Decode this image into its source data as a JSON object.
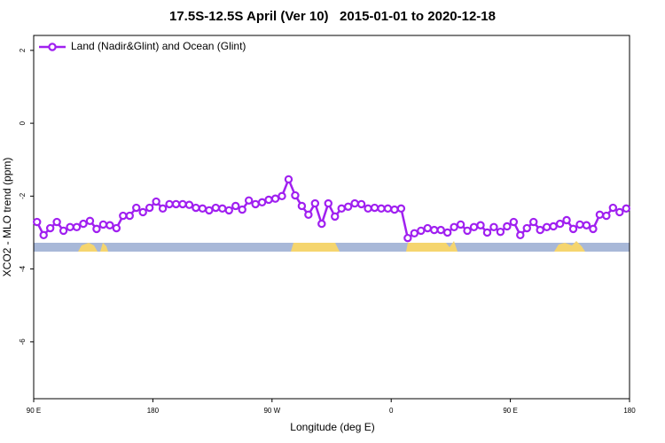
{
  "chart_data": {
    "type": "line",
    "title": "17.5S-12.5S April (Ver 10)   2015-01-01 to 2020-12-18",
    "xlabel": "Longitude (deg E)",
    "ylabel": "XCO2 - MLO trend (ppm)",
    "xlim": [
      90,
      540
    ],
    "ylim": [
      -7.56,
      2.41
    ],
    "xticks": [
      {
        "value": 90,
        "label": "90 E"
      },
      {
        "value": 180,
        "label": "180"
      },
      {
        "value": 270,
        "label": "90 W"
      },
      {
        "value": 360,
        "label": "0"
      },
      {
        "value": 450,
        "label": "90 E"
      },
      {
        "value": 540,
        "label": "180"
      }
    ],
    "yticks": [
      2,
      0,
      -2,
      -4,
      -6
    ],
    "legend": "top-left",
    "series": [
      {
        "name": "Land (Nadir&Glint) and Ocean (Glint)",
        "color": "#a020f0",
        "x": [
          92.5,
          97.5,
          102.5,
          107.5,
          112.5,
          117.5,
          122.5,
          127.5,
          132.5,
          137.5,
          142.5,
          147.5,
          152.5,
          157.5,
          162.5,
          167.5,
          172.5,
          177.5,
          182.5,
          187.5,
          192.5,
          197.5,
          202.5,
          207.5,
          212.5,
          217.5,
          222.5,
          227.5,
          232.5,
          237.5,
          242.5,
          247.5,
          252.5,
          257.5,
          262.5,
          267.5,
          272.5,
          277.5,
          282.5,
          287.5,
          292.5,
          297.5,
          302.5,
          307.5,
          312.5,
          317.5,
          322.5,
          327.5,
          332.5,
          337.5,
          342.5,
          347.5,
          352.5,
          357.5,
          362.5,
          367.5,
          372.5,
          377.5,
          382.5,
          387.5,
          392.5,
          397.5,
          402.5,
          407.5,
          412.5,
          417.5,
          422.5,
          427.5,
          432.5,
          437.5,
          442.5,
          447.5,
          452.5,
          457.5,
          462.5,
          467.5,
          472.5,
          477.5,
          482.5,
          487.5,
          492.5,
          497.5,
          502.5,
          507.5,
          512.5,
          517.5,
          522.5,
          527.5,
          532.5,
          537.5
        ],
        "values": [
          -2.71,
          -3.07,
          -2.88,
          -2.71,
          -2.95,
          -2.85,
          -2.85,
          -2.76,
          -2.68,
          -2.9,
          -2.78,
          -2.8,
          -2.88,
          -2.54,
          -2.54,
          -2.32,
          -2.44,
          -2.32,
          -2.15,
          -2.34,
          -2.22,
          -2.22,
          -2.22,
          -2.24,
          -2.32,
          -2.34,
          -2.39,
          -2.32,
          -2.34,
          -2.39,
          -2.27,
          -2.37,
          -2.12,
          -2.22,
          -2.17,
          -2.1,
          -2.07,
          -2.0,
          -1.54,
          -1.98,
          -2.27,
          -2.51,
          -2.2,
          -2.76,
          -2.2,
          -2.56,
          -2.34,
          -2.29,
          -2.2,
          -2.22,
          -2.34,
          -2.32,
          -2.34,
          -2.34,
          -2.37,
          -2.34,
          -3.15,
          -3.02,
          -2.95,
          -2.88,
          -2.93,
          -2.93,
          -3.0,
          -2.85,
          -2.78,
          -2.95,
          -2.85,
          -2.8,
          -3.0,
          -2.85,
          -2.98,
          -2.83,
          -2.71,
          -3.07,
          -2.88,
          -2.71,
          -2.93,
          -2.85,
          -2.83,
          -2.76,
          -2.66,
          -2.9,
          -2.78,
          -2.8,
          -2.9,
          -2.51,
          -2.54,
          -2.32,
          -2.44,
          -2.34
        ]
      }
    ]
  }
}
